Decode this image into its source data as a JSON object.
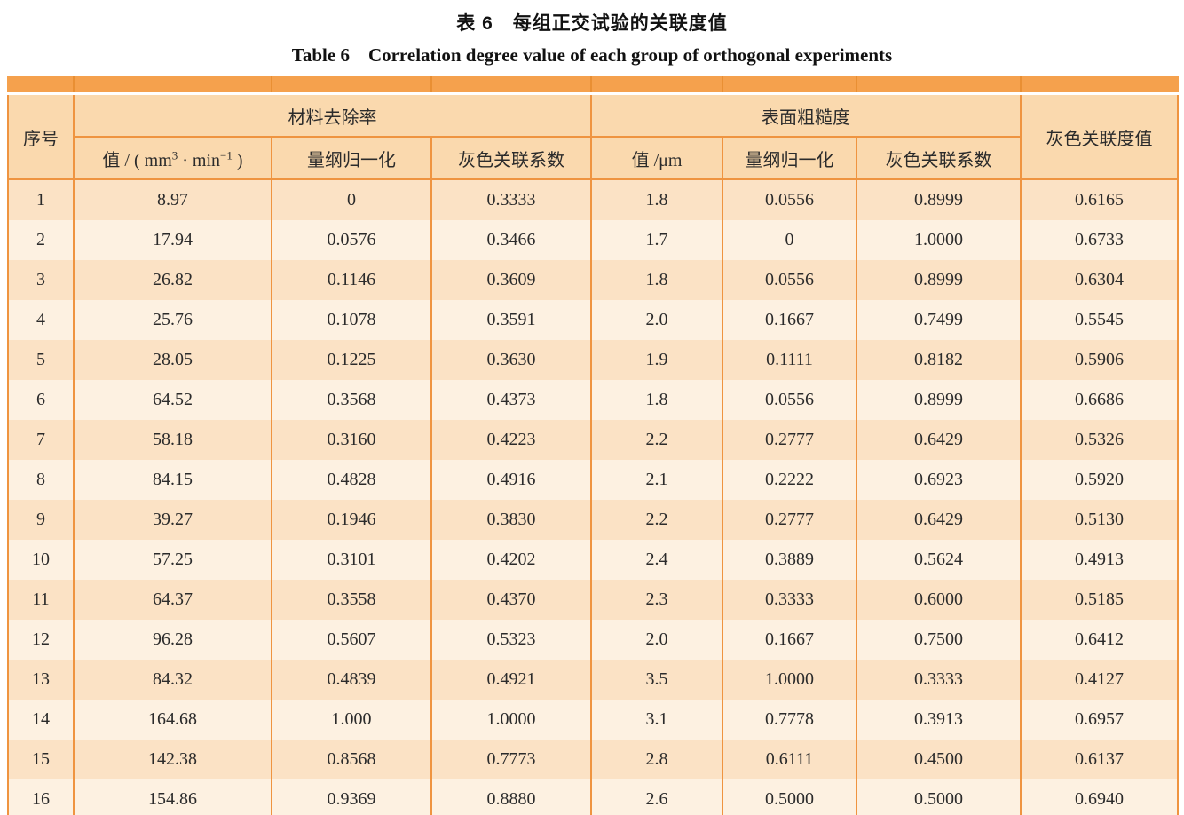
{
  "theme": {
    "band_color": "#f5a14d",
    "band_divider_color": "#e98f33",
    "border_color": "#ef9440",
    "header_bg": "#fad9ae",
    "row_odd_bg": "#fbe2c5",
    "row_even_bg": "#fdf1e1",
    "text_color": "#2b2b2b",
    "page_bg": "#ffffff"
  },
  "caption": {
    "zh": "表 6　每组正交试验的关联度值",
    "en": "Table 6　Correlation degree value of each group of orthogonal experiments"
  },
  "table": {
    "corner_header": "序号",
    "groups": [
      {
        "label": "材料去除率"
      },
      {
        "label": "表面粗糙度"
      }
    ],
    "grand_header": "灰色关联度值",
    "mrr_value_header": {
      "p1": "值 / ( mm",
      "sup1": "3",
      "p2": " · min",
      "sup2": "−1",
      "p3": " )"
    },
    "sub_headers": {
      "mrr_norm": "量纲归一化",
      "mrr_grey": "灰色关联系数",
      "ra_value": "值 /μm",
      "ra_norm": "量纲归一化",
      "ra_grey": "灰色关联系数"
    },
    "rows": [
      [
        "1",
        "8.97",
        "0",
        "0.3333",
        "1.8",
        "0.0556",
        "0.8999",
        "0.6165"
      ],
      [
        "2",
        "17.94",
        "0.0576",
        "0.3466",
        "1.7",
        "0",
        "1.0000",
        "0.6733"
      ],
      [
        "3",
        "26.82",
        "0.1146",
        "0.3609",
        "1.8",
        "0.0556",
        "0.8999",
        "0.6304"
      ],
      [
        "4",
        "25.76",
        "0.1078",
        "0.3591",
        "2.0",
        "0.1667",
        "0.7499",
        "0.5545"
      ],
      [
        "5",
        "28.05",
        "0.1225",
        "0.3630",
        "1.9",
        "0.1111",
        "0.8182",
        "0.5906"
      ],
      [
        "6",
        "64.52",
        "0.3568",
        "0.4373",
        "1.8",
        "0.0556",
        "0.8999",
        "0.6686"
      ],
      [
        "7",
        "58.18",
        "0.3160",
        "0.4223",
        "2.2",
        "0.2777",
        "0.6429",
        "0.5326"
      ],
      [
        "8",
        "84.15",
        "0.4828",
        "0.4916",
        "2.1",
        "0.2222",
        "0.6923",
        "0.5920"
      ],
      [
        "9",
        "39.27",
        "0.1946",
        "0.3830",
        "2.2",
        "0.2777",
        "0.6429",
        "0.5130"
      ],
      [
        "10",
        "57.25",
        "0.3101",
        "0.4202",
        "2.4",
        "0.3889",
        "0.5624",
        "0.4913"
      ],
      [
        "11",
        "64.37",
        "0.3558",
        "0.4370",
        "2.3",
        "0.3333",
        "0.6000",
        "0.5185"
      ],
      [
        "12",
        "96.28",
        "0.5607",
        "0.5323",
        "2.0",
        "0.1667",
        "0.7500",
        "0.6412"
      ],
      [
        "13",
        "84.32",
        "0.4839",
        "0.4921",
        "3.5",
        "1.0000",
        "0.3333",
        "0.4127"
      ],
      [
        "14",
        "164.68",
        "1.000",
        "1.0000",
        "3.1",
        "0.7778",
        "0.3913",
        "0.6957"
      ],
      [
        "15",
        "142.38",
        "0.8568",
        "0.7773",
        "2.8",
        "0.6111",
        "0.4500",
        "0.6137"
      ],
      [
        "16",
        "154.86",
        "0.9369",
        "0.8880",
        "2.6",
        "0.5000",
        "0.5000",
        "0.6940"
      ]
    ]
  }
}
